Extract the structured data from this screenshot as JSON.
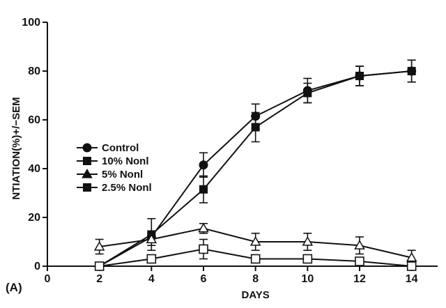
{
  "chart_data": {
    "type": "line",
    "title": "",
    "panel_label": "(A)",
    "xlabel": "DAYS",
    "ylabel": "NTIATION(%)+/−SEM",
    "xlim": [
      0,
      15
    ],
    "ylim": [
      0,
      100
    ],
    "x_ticks": [
      0,
      2,
      4,
      6,
      8,
      10,
      12,
      14
    ],
    "y_ticks": [
      0,
      20,
      40,
      60,
      80,
      100
    ],
    "grid": false,
    "legend_position": "left",
    "error_bars": true,
    "series": [
      {
        "name": "Control",
        "marker": "filled-circle",
        "legend_marker": "filled-circle",
        "x": [
          2,
          4,
          6,
          8,
          10,
          12,
          14
        ],
        "y": [
          0,
          12,
          41.5,
          61.5,
          72,
          78,
          80
        ],
        "err": [
          0,
          2,
          5,
          5,
          5,
          4,
          4.5
        ]
      },
      {
        "name": "10% Nonl",
        "marker": "filled-square",
        "legend_marker": "filled-square",
        "x": [
          2,
          4,
          6,
          8,
          10,
          12,
          14
        ],
        "y": [
          0,
          13,
          31.5,
          57,
          71,
          78,
          80
        ],
        "err": [
          0,
          6.5,
          5.5,
          6,
          4,
          4,
          4.5
        ]
      },
      {
        "name": "5% Nonl",
        "marker": "open-triangle",
        "legend_marker": "filled-triangle",
        "x": [
          2,
          4,
          6,
          8,
          10,
          12,
          14
        ],
        "y": [
          8,
          11,
          15.5,
          10,
          10,
          8.5,
          3.5
        ],
        "err": [
          3,
          2.5,
          2,
          3.5,
          3.5,
          3.5,
          3
        ]
      },
      {
        "name": "2.5% Nonl",
        "marker": "open-square",
        "legend_marker": "filled-square",
        "x": [
          2,
          4,
          6,
          8,
          10,
          12,
          14
        ],
        "y": [
          0,
          3,
          7,
          3,
          3,
          2,
          0
        ],
        "err": [
          0,
          0,
          4,
          0,
          0,
          0,
          0
        ]
      }
    ]
  }
}
